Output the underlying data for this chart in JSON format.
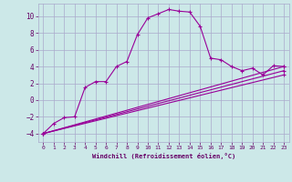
{
  "background_color": "#cce8e8",
  "grid_color": "#aaaacc",
  "line_color": "#990099",
  "xlabel": "Windchill (Refroidissement éolien,°C)",
  "xlabel_color": "#660066",
  "tick_color": "#660066",
  "xlim": [
    -0.5,
    23.5
  ],
  "ylim": [
    -5.0,
    11.5
  ],
  "yticks": [
    -4,
    -2,
    0,
    2,
    4,
    6,
    8,
    10
  ],
  "xticks": [
    0,
    1,
    2,
    3,
    4,
    5,
    6,
    7,
    8,
    9,
    10,
    11,
    12,
    13,
    14,
    15,
    16,
    17,
    18,
    19,
    20,
    21,
    22,
    23
  ],
  "curve1_x": [
    0,
    1,
    2,
    3,
    4,
    5,
    6,
    7,
    8,
    9,
    10,
    11,
    12,
    13,
    14,
    15,
    16,
    17,
    18,
    19,
    20,
    21,
    22,
    23
  ],
  "curve1_y": [
    -4.0,
    -2.8,
    -2.1,
    -2.0,
    1.5,
    2.2,
    2.2,
    4.0,
    4.6,
    7.8,
    9.8,
    10.3,
    10.8,
    10.6,
    10.5,
    8.8,
    5.0,
    4.8,
    4.0,
    3.5,
    3.8,
    3.0,
    4.1,
    4.0
  ],
  "curve2_x": [
    0,
    23
  ],
  "curve2_y": [
    -4.0,
    4.0
  ],
  "curve3_x": [
    0,
    23
  ],
  "curve3_y": [
    -4.0,
    3.5
  ],
  "curve4_x": [
    0,
    23
  ],
  "curve4_y": [
    -4.0,
    3.0
  ]
}
